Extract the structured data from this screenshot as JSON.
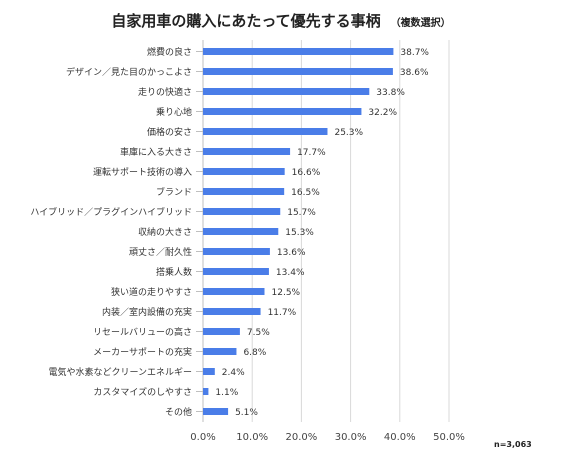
{
  "chart_data": {
    "type": "bar",
    "orientation": "horizontal",
    "title": "自家用車の購入にあたって優先する事柄",
    "subtitle": "（複数選択）",
    "note": "n=3,063",
    "xlim": [
      0,
      50
    ],
    "ticks": [
      "0.0%",
      "10.0%",
      "20.0%",
      "30.0%",
      "40.0%",
      "50.0%"
    ],
    "grid": true,
    "bar_color": "#4a7de8",
    "categories": [
      "燃費の良さ",
      "デザイン／見た目のかっこよさ",
      "走りの快適さ",
      "乗り心地",
      "価格の安さ",
      "車庫に入る大きさ",
      "運転サポート技術の導入",
      "ブランド",
      "ハイブリッド／プラグインハイブリッド",
      "収納の大きさ",
      "頑丈さ／耐久性",
      "搭乗人数",
      "狭い道の走りやすさ",
      "内装／室内設備の充実",
      "リセールバリューの高さ",
      "メーカーサポートの充実",
      "電気や水素などクリーンエネルギー",
      "カスタマイズのしやすさ",
      "その他"
    ],
    "values": [
      38.7,
      38.6,
      33.8,
      32.2,
      25.3,
      17.7,
      16.6,
      16.5,
      15.7,
      15.3,
      13.6,
      13.4,
      12.5,
      11.7,
      7.5,
      6.8,
      2.4,
      1.1,
      5.1
    ],
    "labels": [
      "38.7%",
      "38.6%",
      "33.8%",
      "32.2%",
      "25.3%",
      "17.7%",
      "16.6%",
      "16.5%",
      "15.7%",
      "15.3%",
      "13.6%",
      "13.4%",
      "12.5%",
      "11.7%",
      "7.5%",
      "6.8%",
      "2.4%",
      "1.1%",
      "5.1%"
    ]
  }
}
